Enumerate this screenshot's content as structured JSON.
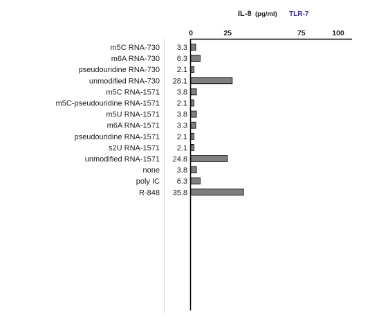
{
  "chart_data": {
    "type": "bar",
    "orientation": "horizontal",
    "title": "IL-8",
    "title_unit": "(pg/ml)",
    "subtitle": "TLR-7",
    "categories": [
      "m5C RNA-730",
      "m6A RNA-730",
      "pseudouridine RNA-730",
      "unmodified RNA-730",
      "m5C RNA-1571",
      "m5C-pseudouridine RNA-1571",
      "m5U RNA-1571",
      "m6A RNA-1571",
      "pseudouridine RNA-1571",
      "s2U RNA-1571",
      "unmodified RNA-1571",
      "none",
      "poly IC",
      "R-848"
    ],
    "values": [
      3.3,
      6.3,
      2.1,
      28.1,
      3.8,
      2.1,
      3.8,
      3.3,
      2.1,
      2.1,
      24.8,
      3.8,
      6.3,
      35.8
    ],
    "value_labels": [
      "3.3",
      "6.3",
      "2.1",
      "28.1",
      "3.8",
      "2.1",
      "3.8",
      "3.3",
      "2.1",
      "2.1",
      "24.8",
      "3.8",
      "6.3",
      "35.8"
    ],
    "ticks": [
      "0",
      "25",
      "75",
      "100"
    ],
    "tick_values": [
      0,
      25,
      75,
      100
    ],
    "xlim": [
      0,
      100
    ],
    "xaxis_position": "top",
    "grid": false,
    "legend": false,
    "colors": {
      "bar_fill": "#7f7f7f",
      "bar_stroke": "#000000",
      "subtitle": "#3a2fa8"
    }
  }
}
